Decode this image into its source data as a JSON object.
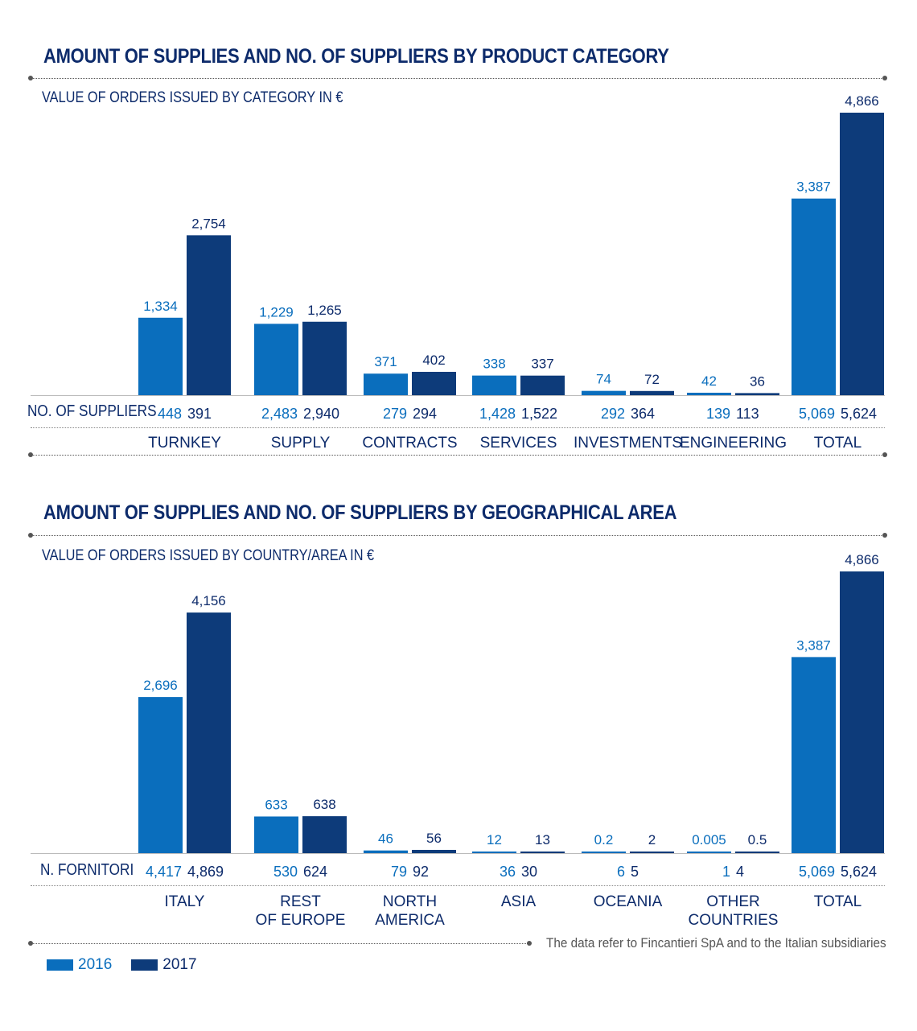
{
  "colors": {
    "c2016": "#0a6ebd",
    "c2017": "#0d3b7a",
    "text2016": "#0a6ebd",
    "text2017": "#0d2b6b"
  },
  "legend": [
    {
      "label": "2016"
    },
    {
      "label": "2017"
    }
  ],
  "footnote": "The data refer to Fincantieri SpA and to the Italian subsidiaries",
  "chart_data": [
    {
      "type": "bar",
      "title": "AMOUNT OF SUPPLIES AND NO. OF SUPPLIERS BY PRODUCT CATEGORY",
      "subtitle": "VALUE OF ORDERS ISSUED BY CATEGORY IN €",
      "count_label": "NO. OF SUPPLIERS",
      "categories": [
        [
          "TURNKEY"
        ],
        [
          "SUPPLY"
        ],
        [
          "CONTRACTS"
        ],
        [
          "SERVICES"
        ],
        [
          "INVESTMENTS"
        ],
        [
          "ENGINEERING"
        ],
        [
          "TOTAL"
        ]
      ],
      "series": [
        {
          "name": "2016",
          "values": [
            1334,
            1229,
            371,
            338,
            74,
            42,
            3387
          ],
          "labels": [
            "1,334",
            "1,229",
            "371",
            "338",
            "74",
            "42",
            "3,387"
          ],
          "counts": [
            "448",
            "2,483",
            "279",
            "1,428",
            "292",
            "139",
            "5,069"
          ]
        },
        {
          "name": "2017",
          "values": [
            2754,
            1265,
            402,
            337,
            72,
            36,
            4866
          ],
          "labels": [
            "2,754",
            "1,265",
            "402",
            "337",
            "72",
            "36",
            "4,866"
          ],
          "counts": [
            "391",
            "2,940",
            "294",
            "1,522",
            "364",
            "113",
            "5,624"
          ]
        }
      ],
      "ylim": [
        0,
        4866
      ]
    },
    {
      "type": "bar",
      "title": "AMOUNT OF SUPPLIES AND NO. OF SUPPLIERS BY GEOGRAPHICAL AREA",
      "subtitle": "VALUE OF ORDERS ISSUED BY COUNTRY/AREA IN €",
      "count_label": "N. FORNITORI",
      "categories": [
        [
          "ITALY"
        ],
        [
          "REST",
          "OF EUROPE"
        ],
        [
          "NORTH",
          "AMERICA"
        ],
        [
          "ASIA"
        ],
        [
          "OCEANIA"
        ],
        [
          "OTHER",
          "COUNTRIES"
        ],
        [
          "TOTAL"
        ]
      ],
      "series": [
        {
          "name": "2016",
          "values": [
            2696,
            633,
            46,
            12,
            0.2,
            0.005,
            3387
          ],
          "labels": [
            "2,696",
            "633",
            "46",
            "12",
            "0.2",
            "0.005",
            "3,387"
          ],
          "counts": [
            "4,417",
            "530",
            "79",
            "36",
            "6",
            "1",
            "5,069"
          ]
        },
        {
          "name": "2017",
          "values": [
            4156,
            638,
            56,
            13,
            2,
            0.5,
            4866
          ],
          "labels": [
            "4,156",
            "638",
            "56",
            "13",
            "2",
            "0.5",
            "4,866"
          ],
          "counts": [
            "4,869",
            "624",
            "92",
            "30",
            "5",
            "4",
            "5,624"
          ]
        }
      ],
      "ylim": [
        0,
        4866
      ]
    }
  ]
}
